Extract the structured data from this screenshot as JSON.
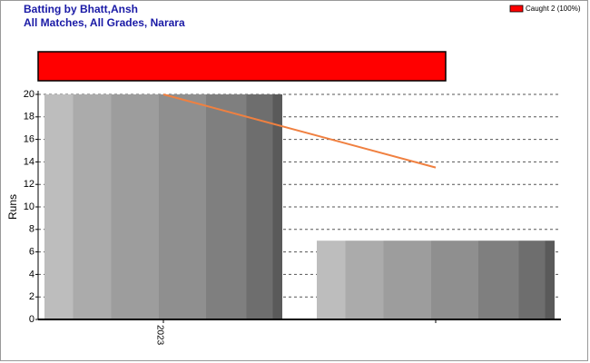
{
  "chart_data": {
    "type": "bar",
    "title": "Batting by Bhatt,Ansh",
    "subtitle": "All Matches, All Grades, Narara",
    "y_label": "Runs",
    "categories": [
      "2023",
      null
    ],
    "values": [
      20,
      7
    ],
    "color": "#999999",
    "trend": {
      "color": "#f08040",
      "values": [
        20,
        13.5
      ]
    },
    "dismissals": {
      "series": [
        {
          "name": "Caught 2 (100%)",
          "color": "#ff0000",
          "values": [
            100
          ]
        }
      ]
    },
    "ylim": [
      0,
      20
    ],
    "yticks": [
      0,
      2,
      4,
      6,
      8,
      10,
      12,
      14,
      16,
      18,
      20
    ],
    "grid": true
  }
}
